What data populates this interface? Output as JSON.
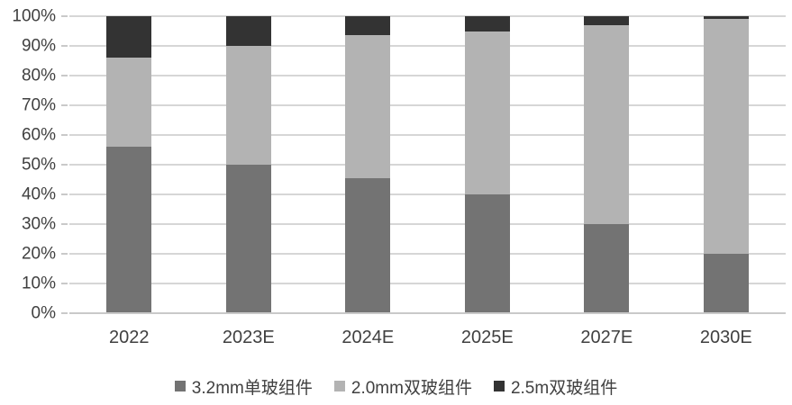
{
  "chart_data": {
    "type": "bar",
    "stacked": true,
    "percent_stacked": true,
    "title": "",
    "xlabel": "",
    "ylabel": "",
    "ylim": [
      0,
      100
    ],
    "yticks": [
      "0%",
      "10%",
      "20%",
      "30%",
      "40%",
      "50%",
      "60%",
      "70%",
      "80%",
      "90%",
      "100%"
    ],
    "grid": true,
    "legend_position": "bottom",
    "categories": [
      "2022",
      "2023E",
      "2024E",
      "2025E",
      "2027E",
      "2030E"
    ],
    "series": [
      {
        "name": "3.2mm单玻组件",
        "color": "#737373",
        "values": [
          56,
          50,
          45.5,
          40,
          30,
          20
        ]
      },
      {
        "name": "2.0mm双玻组件",
        "color": "#b3b3b3",
        "values": [
          30,
          40,
          48,
          55,
          67,
          79
        ]
      },
      {
        "name": "2.5m双玻组件",
        "color": "#333333",
        "values": [
          14,
          10,
          6.5,
          5,
          3,
          1
        ]
      }
    ],
    "colors": {
      "grid": "#d6d6d6",
      "axis": "#c9c9c9",
      "text": "#404040",
      "background": "#ffffff"
    }
  }
}
